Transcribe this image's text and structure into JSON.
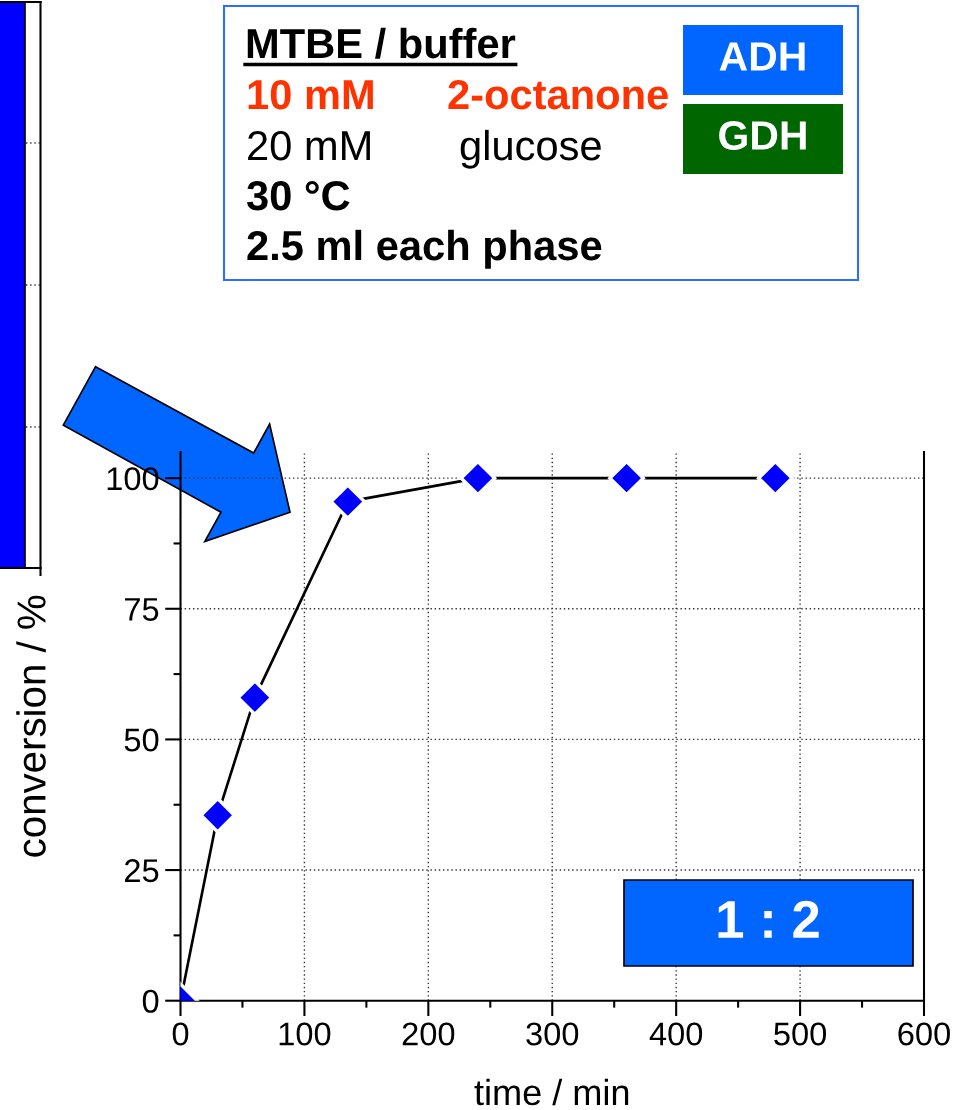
{
  "chart_data": {
    "type": "line",
    "xlabel": "time / min",
    "ylabel": "conversion / %",
    "x": [
      0,
      30,
      60,
      135,
      240,
      360,
      480
    ],
    "values": [
      0,
      35.5,
      58,
      95.5,
      100,
      100,
      100
    ],
    "color": "#0000ff",
    "marker": "diamond",
    "line_style": "solid",
    "xlim": [
      0,
      600
    ],
    "ylim": [
      0,
      105
    ],
    "xticks": [
      0,
      100,
      200,
      300,
      400,
      500,
      600
    ],
    "yticks": [
      0,
      25,
      50,
      75,
      100
    ],
    "grid": true,
    "annotations": [
      "MTBE / buffer",
      "10 mM",
      "2-octanone",
      "20 mM",
      "glucose",
      "30 °C",
      "2.5 ml each phase",
      "ADH",
      "GDH",
      "1 : 2"
    ]
  }
}
